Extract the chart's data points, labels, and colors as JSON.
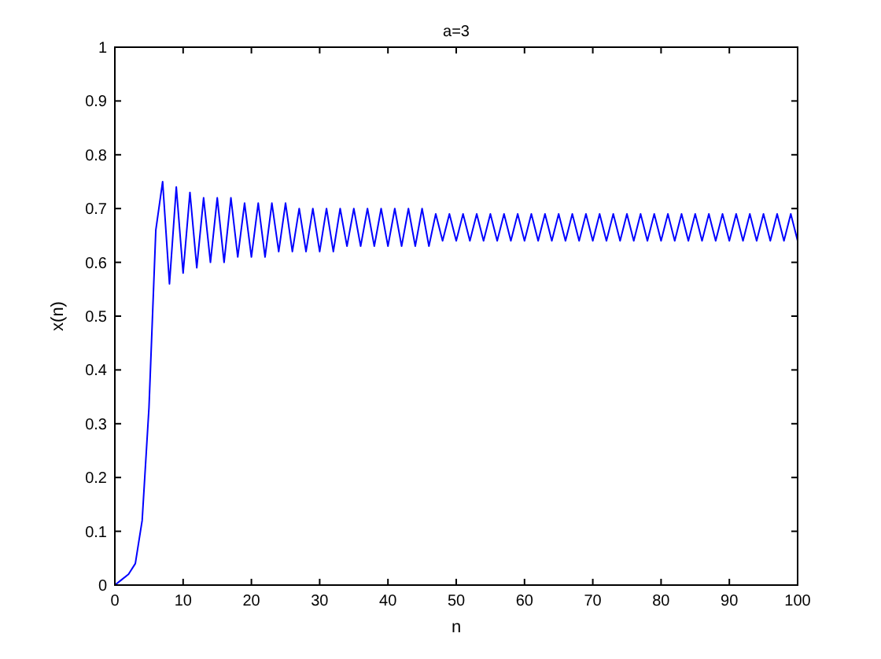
{
  "chart_data": {
    "type": "line",
    "title": "a=3",
    "xlabel": "n",
    "ylabel": "x(n)",
    "x": [
      0,
      1,
      2,
      3,
      4,
      5,
      6,
      7,
      8,
      9,
      10,
      11,
      12,
      13,
      14,
      15,
      16,
      17,
      18,
      19,
      20,
      21,
      22,
      23,
      24,
      25,
      26,
      27,
      28,
      29,
      30,
      31,
      32,
      33,
      34,
      35,
      36,
      37,
      38,
      39,
      40,
      41,
      42,
      43,
      44,
      45,
      46,
      47,
      48,
      49,
      50,
      51,
      52,
      53,
      54,
      55,
      56,
      57,
      58,
      59,
      60,
      61,
      62,
      63,
      64,
      65,
      66,
      67,
      68,
      69,
      70,
      71,
      72,
      73,
      74,
      75,
      76,
      77,
      78,
      79,
      80,
      81,
      82,
      83,
      84,
      85,
      86,
      87,
      88,
      89,
      90,
      91,
      92,
      93,
      94,
      95,
      96,
      97,
      98,
      99,
      100
    ],
    "series": [
      {
        "color": "#0000ff",
        "values": [
          0,
          0.01,
          0.02,
          0.04,
          0.12,
          0.33,
          0.66,
          0.75,
          0.56,
          0.74,
          0.58,
          0.73,
          0.59,
          0.72,
          0.6,
          0.72,
          0.6,
          0.72,
          0.61,
          0.71,
          0.61,
          0.71,
          0.61,
          0.71,
          0.62,
          0.71,
          0.62,
          0.7,
          0.62,
          0.7,
          0.62,
          0.7,
          0.62,
          0.7,
          0.63,
          0.7,
          0.63,
          0.7,
          0.63,
          0.7,
          0.63,
          0.7,
          0.63,
          0.7,
          0.63,
          0.7,
          0.63,
          0.69,
          0.64,
          0.69,
          0.64,
          0.69,
          0.64,
          0.69,
          0.64,
          0.69,
          0.64,
          0.69,
          0.64,
          0.69,
          0.64,
          0.69,
          0.64,
          0.69,
          0.64,
          0.69,
          0.64,
          0.69,
          0.64,
          0.69,
          0.64,
          0.69,
          0.64,
          0.69,
          0.64,
          0.69,
          0.64,
          0.69,
          0.64,
          0.69,
          0.64,
          0.69,
          0.64,
          0.69,
          0.64,
          0.69,
          0.64,
          0.69,
          0.64,
          0.69,
          0.64,
          0.69,
          0.64,
          0.69,
          0.64,
          0.69,
          0.64,
          0.69,
          0.64,
          0.69,
          0.64
        ]
      }
    ],
    "xlim": [
      0,
      100
    ],
    "xticks": [
      0,
      10,
      20,
      30,
      40,
      50,
      60,
      70,
      80,
      90,
      100
    ],
    "ylim": [
      0,
      1
    ],
    "yticks": [
      0,
      0.1,
      0.2,
      0.3,
      0.4,
      0.5,
      0.6,
      0.7,
      0.8,
      0.9,
      1
    ],
    "grid": false,
    "marker": "none",
    "line_style": "solid"
  }
}
